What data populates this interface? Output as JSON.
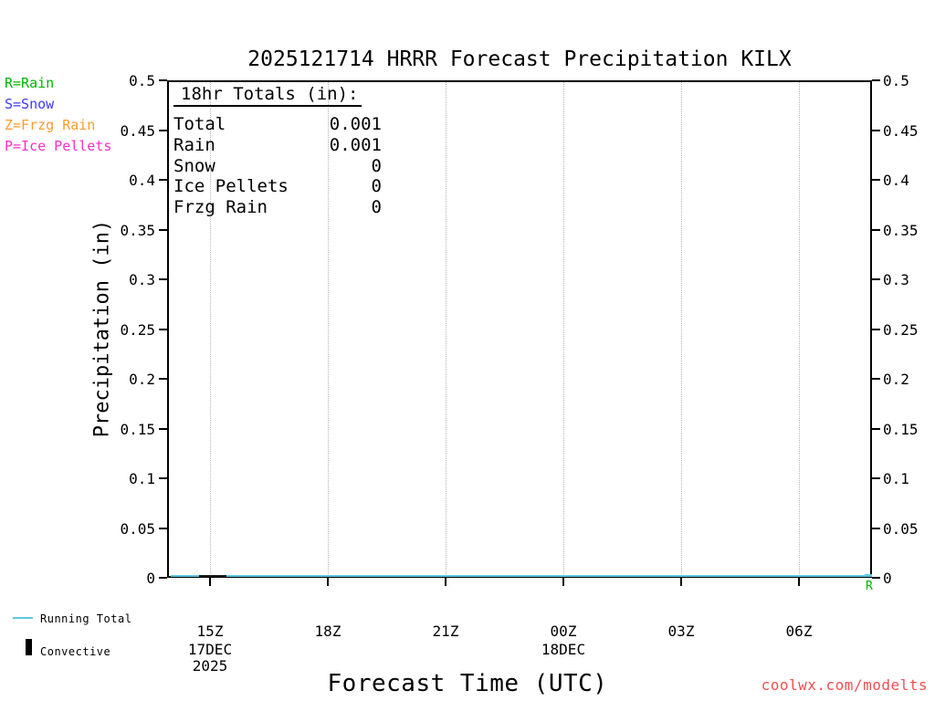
{
  "title": "2025121714 HRRR Forecast Precipitation KILX",
  "legend": {
    "items": [
      {
        "label": "R=Rain",
        "color": "#00b400"
      },
      {
        "label": "S=Snow",
        "color": "#3a3aff"
      },
      {
        "label": "Z=Frzg Rain",
        "color": "#ff9b2e"
      },
      {
        "label": "P=Ice Pellets",
        "color": "#ff2ec8"
      }
    ]
  },
  "totals_box": {
    "heading": "18hr Totals (in):",
    "rows": [
      {
        "label": "Total",
        "value": "0.001"
      },
      {
        "label": "Rain",
        "value": "0.001"
      },
      {
        "label": "Snow",
        "value": "0"
      },
      {
        "label": "Ice Pellets",
        "value": "0"
      },
      {
        "label": "Frzg Rain",
        "value": "0"
      }
    ]
  },
  "axes": {
    "ylabel": "Precipitation (in)",
    "xlabel": "Forecast Time (UTC)",
    "y_ticks": [
      "0.5",
      "0.45",
      "0.4",
      "0.35",
      "0.3",
      "0.25",
      "0.2",
      "0.15",
      "0.1",
      "0.05",
      "0"
    ],
    "x_ticks": [
      "15Z",
      "18Z",
      "21Z",
      "00Z",
      "03Z",
      "06Z"
    ],
    "date_labels": [
      "17DEC",
      "2025",
      "18DEC"
    ]
  },
  "bottom_legend": {
    "running_total_label": "Running Total",
    "running_total_color": "#5fc8e0",
    "convective_label": "Convective",
    "convective_color": "#000000"
  },
  "watermark": {
    "text": "coolwx.com/modelts",
    "color": "#f05050"
  },
  "chart_data": {
    "type": "line",
    "title": "2025121714 HRRR Forecast Precipitation KILX",
    "xlabel": "Forecast Time (UTC)",
    "ylabel": "Precipitation (in)",
    "ylim": [
      0,
      0.5
    ],
    "y_tick_step": 0.05,
    "grid": "vertical dotted lines at labeled 3-hour ticks",
    "legend_position": "bottom-left outside plot",
    "x_ticks": [
      "15Z",
      "18Z",
      "21Z",
      "00Z",
      "03Z",
      "06Z"
    ],
    "x_start": "17DEC 2025 14Z",
    "x_end": "18DEC 2025 08Z",
    "series": [
      {
        "name": "Running Total",
        "color": "#5fc8e0",
        "x": [
          "14Z",
          "15Z",
          "16Z",
          "17Z",
          "18Z",
          "19Z",
          "20Z",
          "21Z",
          "22Z",
          "23Z",
          "00Z",
          "01Z",
          "02Z",
          "03Z",
          "04Z",
          "05Z",
          "06Z",
          "07Z",
          "08Z"
        ],
        "values": [
          0,
          0,
          0,
          0,
          0,
          0,
          0,
          0,
          0,
          0,
          0,
          0,
          0,
          0,
          0,
          0,
          0,
          0,
          0.001
        ]
      },
      {
        "name": "Convective",
        "color": "#000000",
        "x": [
          "14Z",
          "15Z",
          "16Z",
          "17Z",
          "18Z",
          "19Z",
          "20Z",
          "21Z",
          "22Z",
          "23Z",
          "00Z",
          "01Z",
          "02Z",
          "03Z",
          "04Z",
          "05Z",
          "06Z",
          "07Z",
          "08Z"
        ],
        "values": [
          0,
          0,
          0,
          0,
          0,
          0,
          0,
          0,
          0,
          0,
          0,
          0,
          0,
          0,
          0,
          0,
          0,
          0,
          0
        ]
      }
    ],
    "markers": [
      {
        "symbol": "R",
        "meaning": "Rain",
        "x": "08Z",
        "y": 0,
        "color": "#00b400"
      }
    ],
    "totals_18hr_in": {
      "Total": 0.001,
      "Rain": 0.001,
      "Snow": 0,
      "Ice_Pellets": 0,
      "Frzg_Rain": 0
    }
  }
}
